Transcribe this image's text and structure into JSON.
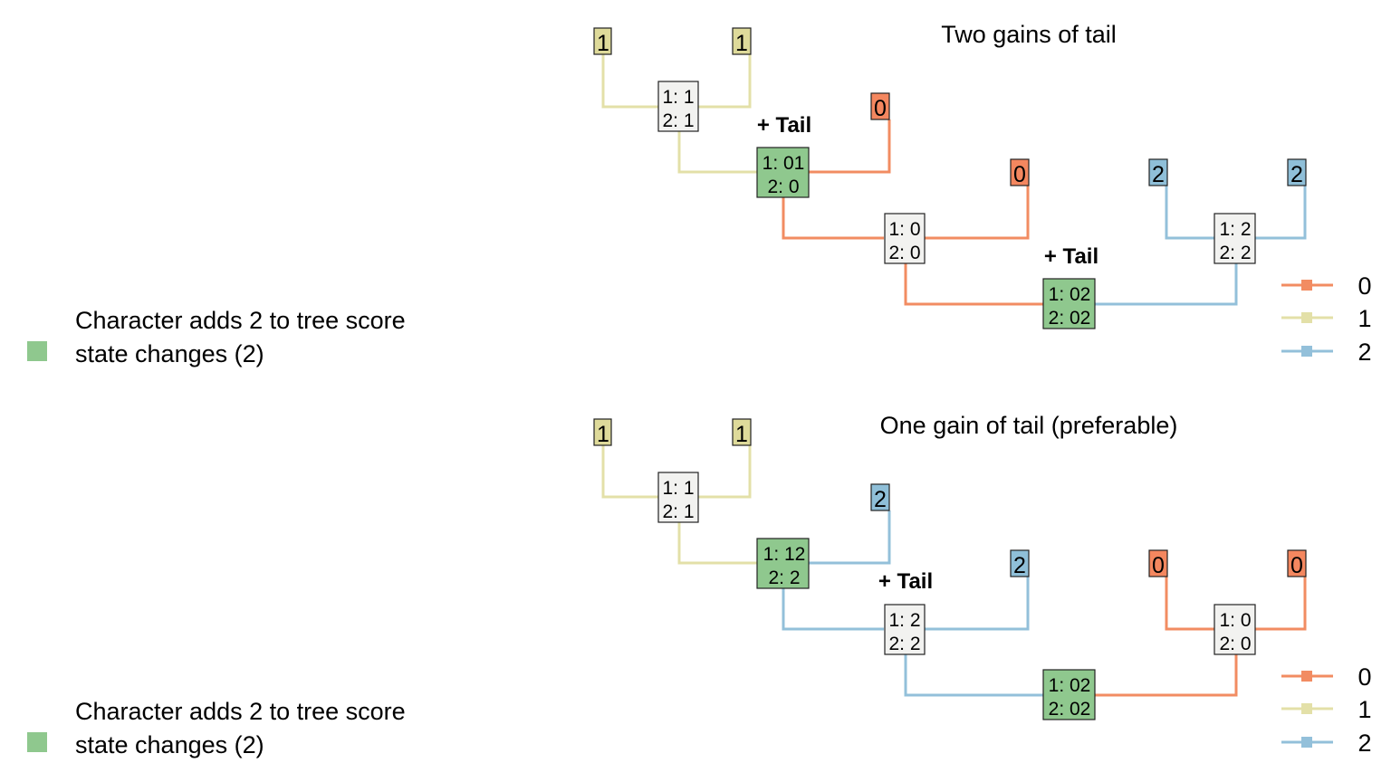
{
  "colors": {
    "state_0": "#F4875F",
    "state_1": "#E5E3A6",
    "state_2": "#8FBFD8",
    "tip_1_fill": "#DEDA9A",
    "change_fill": "#8FC88E",
    "node_fill": "#F2F2F0",
    "edge_1": "#E3E0A8",
    "edge_0": "#F28C62",
    "edge_2": "#93C0DA"
  },
  "panels": [
    {
      "title": "Two gains of tail",
      "caption_line1": "Character adds 2 to tree score",
      "caption_line2": "state changes (2)",
      "legend": [
        "0",
        "1",
        "2"
      ],
      "tips": [
        {
          "id": "t1",
          "label": "1",
          "state": "1"
        },
        {
          "id": "t2",
          "label": "1",
          "state": "1"
        },
        {
          "id": "t3",
          "label": "0",
          "state": "0"
        },
        {
          "id": "t4",
          "label": "0",
          "state": "0"
        },
        {
          "id": "t5",
          "label": "2",
          "state": "2"
        },
        {
          "id": "t6",
          "label": "2",
          "state": "2"
        }
      ],
      "nodes": [
        {
          "id": "n1",
          "line1": "1: 1",
          "line2": "2: 1",
          "change": false
        },
        {
          "id": "n2",
          "line1": "1: 01",
          "line2": "2: 0",
          "change": true,
          "annotation": "+ Tail"
        },
        {
          "id": "n3",
          "line1": "1: 0",
          "line2": "2: 0",
          "change": false
        },
        {
          "id": "n4",
          "line1": "1: 02",
          "line2": "2: 02",
          "change": true,
          "annotation": "+ Tail"
        },
        {
          "id": "n5",
          "line1": "1: 2",
          "line2": "2: 2",
          "change": false
        }
      ]
    },
    {
      "title": "One gain of tail (preferable)",
      "caption_line1": "Character adds 2 to tree score",
      "caption_line2": "state changes (2)",
      "legend": [
        "0",
        "1",
        "2"
      ],
      "tips": [
        {
          "id": "t1",
          "label": "1",
          "state": "1"
        },
        {
          "id": "t2",
          "label": "1",
          "state": "1"
        },
        {
          "id": "t3",
          "label": "2",
          "state": "2"
        },
        {
          "id": "t4",
          "label": "2",
          "state": "2"
        },
        {
          "id": "t5",
          "label": "0",
          "state": "0"
        },
        {
          "id": "t6",
          "label": "0",
          "state": "0"
        }
      ],
      "nodes": [
        {
          "id": "n1",
          "line1": "1: 1",
          "line2": "2: 1",
          "change": false
        },
        {
          "id": "n2",
          "line1": "1: 12",
          "line2": "2: 2",
          "change": true
        },
        {
          "id": "n3",
          "line1": "1: 2",
          "line2": "2: 2",
          "change": false,
          "annotation": "+ Tail"
        },
        {
          "id": "n4",
          "line1": "1: 02",
          "line2": "2: 02",
          "change": true
        },
        {
          "id": "n5",
          "line1": "1: 0",
          "line2": "2: 0",
          "change": false
        }
      ]
    }
  ]
}
